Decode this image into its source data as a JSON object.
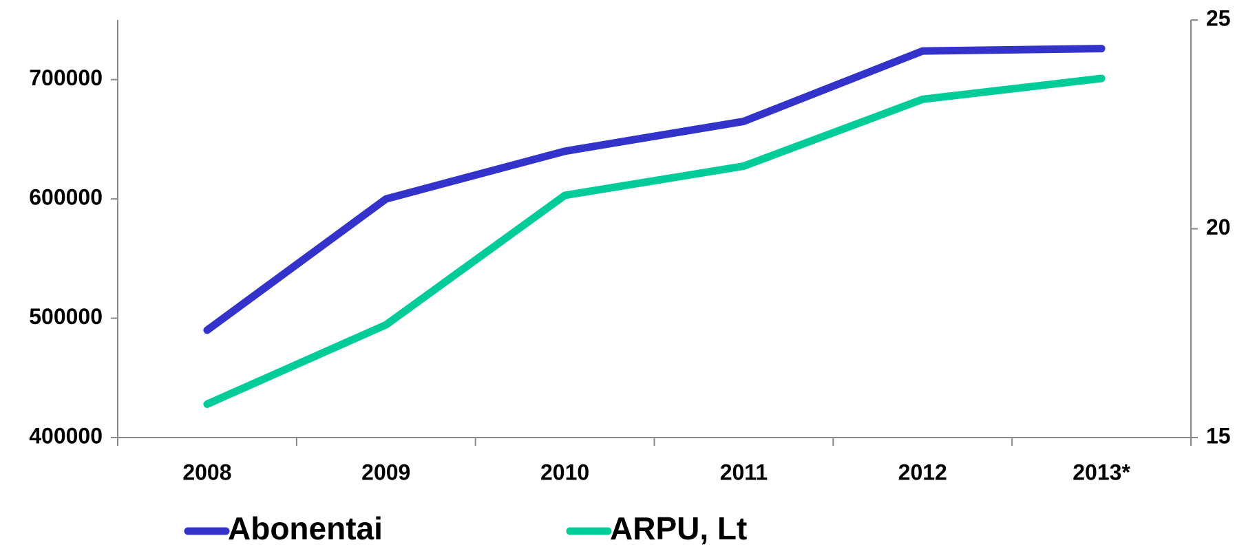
{
  "chart_data": {
    "type": "line",
    "categories": [
      "2008",
      "2009",
      "2010",
      "2011",
      "2012",
      "2013*"
    ],
    "series": [
      {
        "name": "Abonentai",
        "color": "#3333cc",
        "values": [
          490000,
          600000,
          640000,
          665000,
          724000,
          726000
        ]
      },
      {
        "name": "ARPU, Lt",
        "color": "#00cc99",
        "axis": "y2",
        "values": [
          15.8,
          17.7,
          20.8,
          21.5,
          23.1,
          23.6
        ]
      }
    ],
    "ylim": [
      400000,
      750000
    ],
    "yticks": [
      400000,
      500000,
      600000,
      700000
    ],
    "y2lim": [
      15,
      25
    ],
    "y2ticks": [
      15,
      20,
      25
    ],
    "legend": "bottom"
  }
}
